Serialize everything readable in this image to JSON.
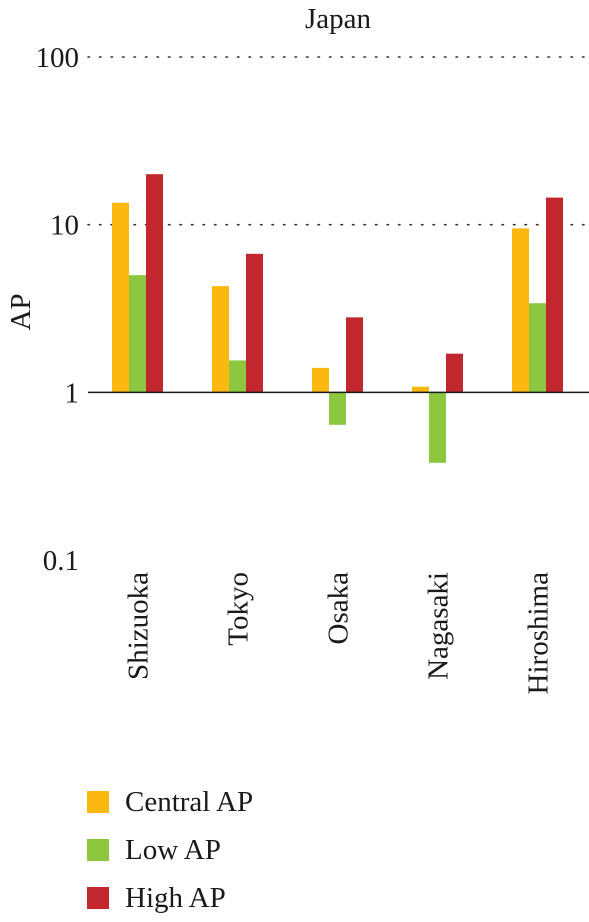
{
  "chart_data": {
    "type": "bar",
    "title": "Japan",
    "xlabel": "",
    "ylabel": "AP",
    "yscale": "log",
    "ylim": [
      0.1,
      100
    ],
    "baseline": 1,
    "yticks": [
      {
        "value": 0.1,
        "label": "0.1"
      },
      {
        "value": 1,
        "label": "1"
      },
      {
        "value": 10,
        "label": "10"
      },
      {
        "value": 100,
        "label": "100"
      }
    ],
    "grid": "dotted horizontal at 10 and 100",
    "legend_position": "bottom-left",
    "categories": [
      "Shizuoka",
      "Tokyo",
      "Osaka",
      "Nagasaki",
      "Hiroshima"
    ],
    "series": [
      {
        "name": "Central AP",
        "color": "#fbb910",
        "values": [
          13.5,
          4.3,
          1.4,
          1.08,
          9.5
        ]
      },
      {
        "name": "Low AP",
        "color": "#8dc63f",
        "values": [
          5.0,
          1.55,
          0.64,
          0.38,
          3.4
        ]
      },
      {
        "name": "High AP",
        "color": "#c1272d",
        "values": [
          20,
          6.7,
          2.8,
          1.7,
          14.5
        ]
      }
    ]
  }
}
